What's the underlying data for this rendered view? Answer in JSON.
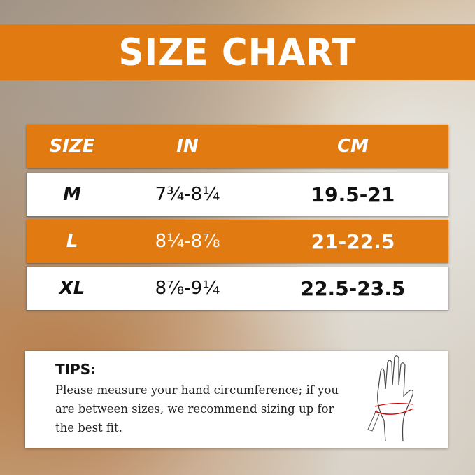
{
  "title": "SIZE CHART",
  "table": {
    "headers": [
      "SIZE",
      "IN",
      "CM"
    ],
    "rows": [
      {
        "size": "M",
        "in": "7¾-8¼",
        "cm": "19.5-21"
      },
      {
        "size": "L",
        "in": "8¼-8⅞",
        "cm": "21-22.5"
      },
      {
        "size": "XL",
        "in": "8⅞-9¼",
        "cm": "22.5-23.5"
      }
    ]
  },
  "tips": {
    "heading": "TIPS:",
    "text": "Please measure your hand circumference; if you are between sizes, we recommend sizing up for the best fit.",
    "icon": "hand-measuring-tape-icon"
  },
  "colors": {
    "accent": "#e27a12",
    "row_white": "#ffffff"
  }
}
